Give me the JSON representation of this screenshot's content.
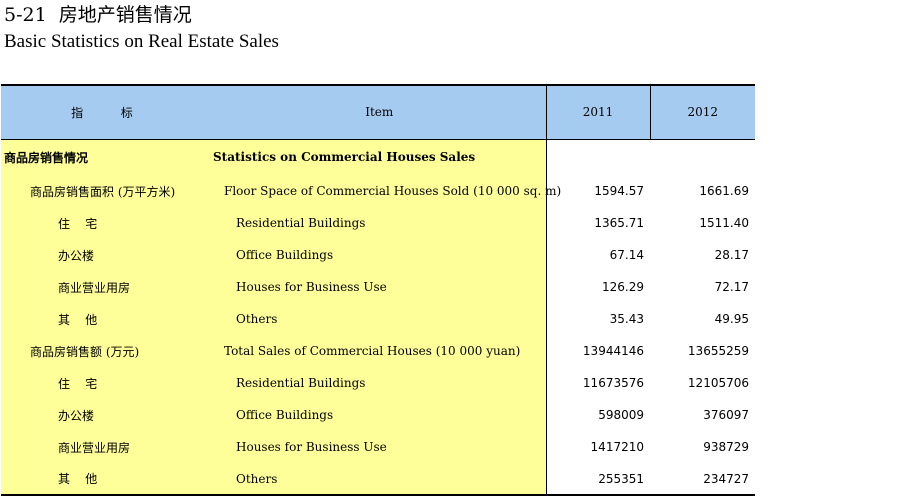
{
  "title": {
    "number": "5-21",
    "cn": "房地产销售情况",
    "en": "Basic Statistics on Real Estate Sales"
  },
  "table": {
    "headers": {
      "indicator_cn": "指  标",
      "item": "Item",
      "year1": "2011",
      "year2": "2012"
    },
    "rows": [
      {
        "cn": "商品房销售情况",
        "en": "Statistics on Commercial Houses Sales",
        "y1": "",
        "y2": ""
      },
      {
        "cn": "商品房销售面积 (万平方米)",
        "en": "Floor Space of Commercial Houses Sold (10 000 sq. m)",
        "y1": "1594.57",
        "y2": "1661.69"
      },
      {
        "cn": "住    宅",
        "en": "Residential Buildings",
        "y1": "1365.71",
        "y2": "1511.40"
      },
      {
        "cn": "办公楼",
        "en": "Office Buildings",
        "y1": "67.14",
        "y2": "28.17"
      },
      {
        "cn": "商业营业用房",
        "en": "Houses for Business Use",
        "y1": "126.29",
        "y2": "72.17"
      },
      {
        "cn": "其    他",
        "en": "Others",
        "y1": "35.43",
        "y2": "49.95"
      },
      {
        "cn": "商品房销售额 (万元)",
        "en": "Total Sales of Commercial Houses (10 000 yuan)",
        "y1": "13944146",
        "y2": "13655259"
      },
      {
        "cn": "住    宅",
        "en": "Residential Buildings",
        "y1": "11673576",
        "y2": "12105706"
      },
      {
        "cn": "办公楼",
        "en": "Office Buildings",
        "y1": "598009",
        "y2": "376097"
      },
      {
        "cn": "商业营业用房",
        "en": "Houses for Business Use",
        "y1": "1417210",
        "y2": "938729"
      },
      {
        "cn": "其    他",
        "en": "Others",
        "y1": "255351",
        "y2": "234727"
      }
    ]
  },
  "colors": {
    "header_bg": "#a6cbf0",
    "label_bg": "#ffff99"
  }
}
